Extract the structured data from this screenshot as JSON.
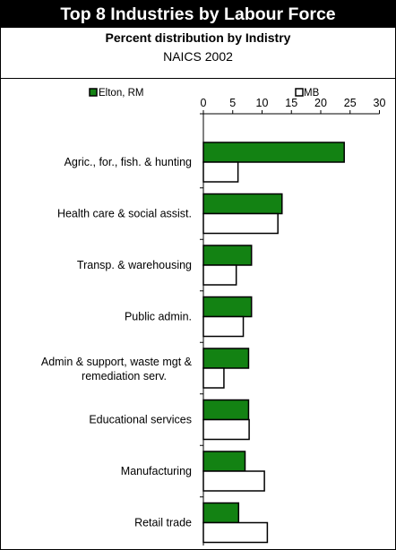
{
  "header": {
    "title": "Top 8 Industries by Labour Force",
    "subtitle": "Percent distribution by Indistry",
    "subtitle2": "NAICS 2002"
  },
  "colors": {
    "elton": "#138213",
    "mb": "#ffffff",
    "outline": "#000000"
  },
  "chart_data": {
    "type": "bar",
    "orientation": "horizontal",
    "categories": [
      "Agric., for., fish. & hunting",
      "Health care & social assist.",
      "Transp. & warehousing",
      "Public admin.",
      "Admin & support, waste mgt & remediation serv.",
      "Educational services",
      "Manufacturing",
      "Retail trade"
    ],
    "series": [
      {
        "name": "Elton, RM",
        "values": [
          24.0,
          13.4,
          8.2,
          8.2,
          7.7,
          7.7,
          7.1,
          6.0
        ]
      },
      {
        "name": "MB",
        "values": [
          5.9,
          12.7,
          5.6,
          6.8,
          3.5,
          7.8,
          10.4,
          10.9
        ]
      }
    ],
    "xticks": [
      "0",
      "5",
      "10",
      "15",
      "20",
      "25",
      "30"
    ],
    "xlim": [
      0,
      30
    ],
    "legend_position": "top",
    "grid": false
  }
}
